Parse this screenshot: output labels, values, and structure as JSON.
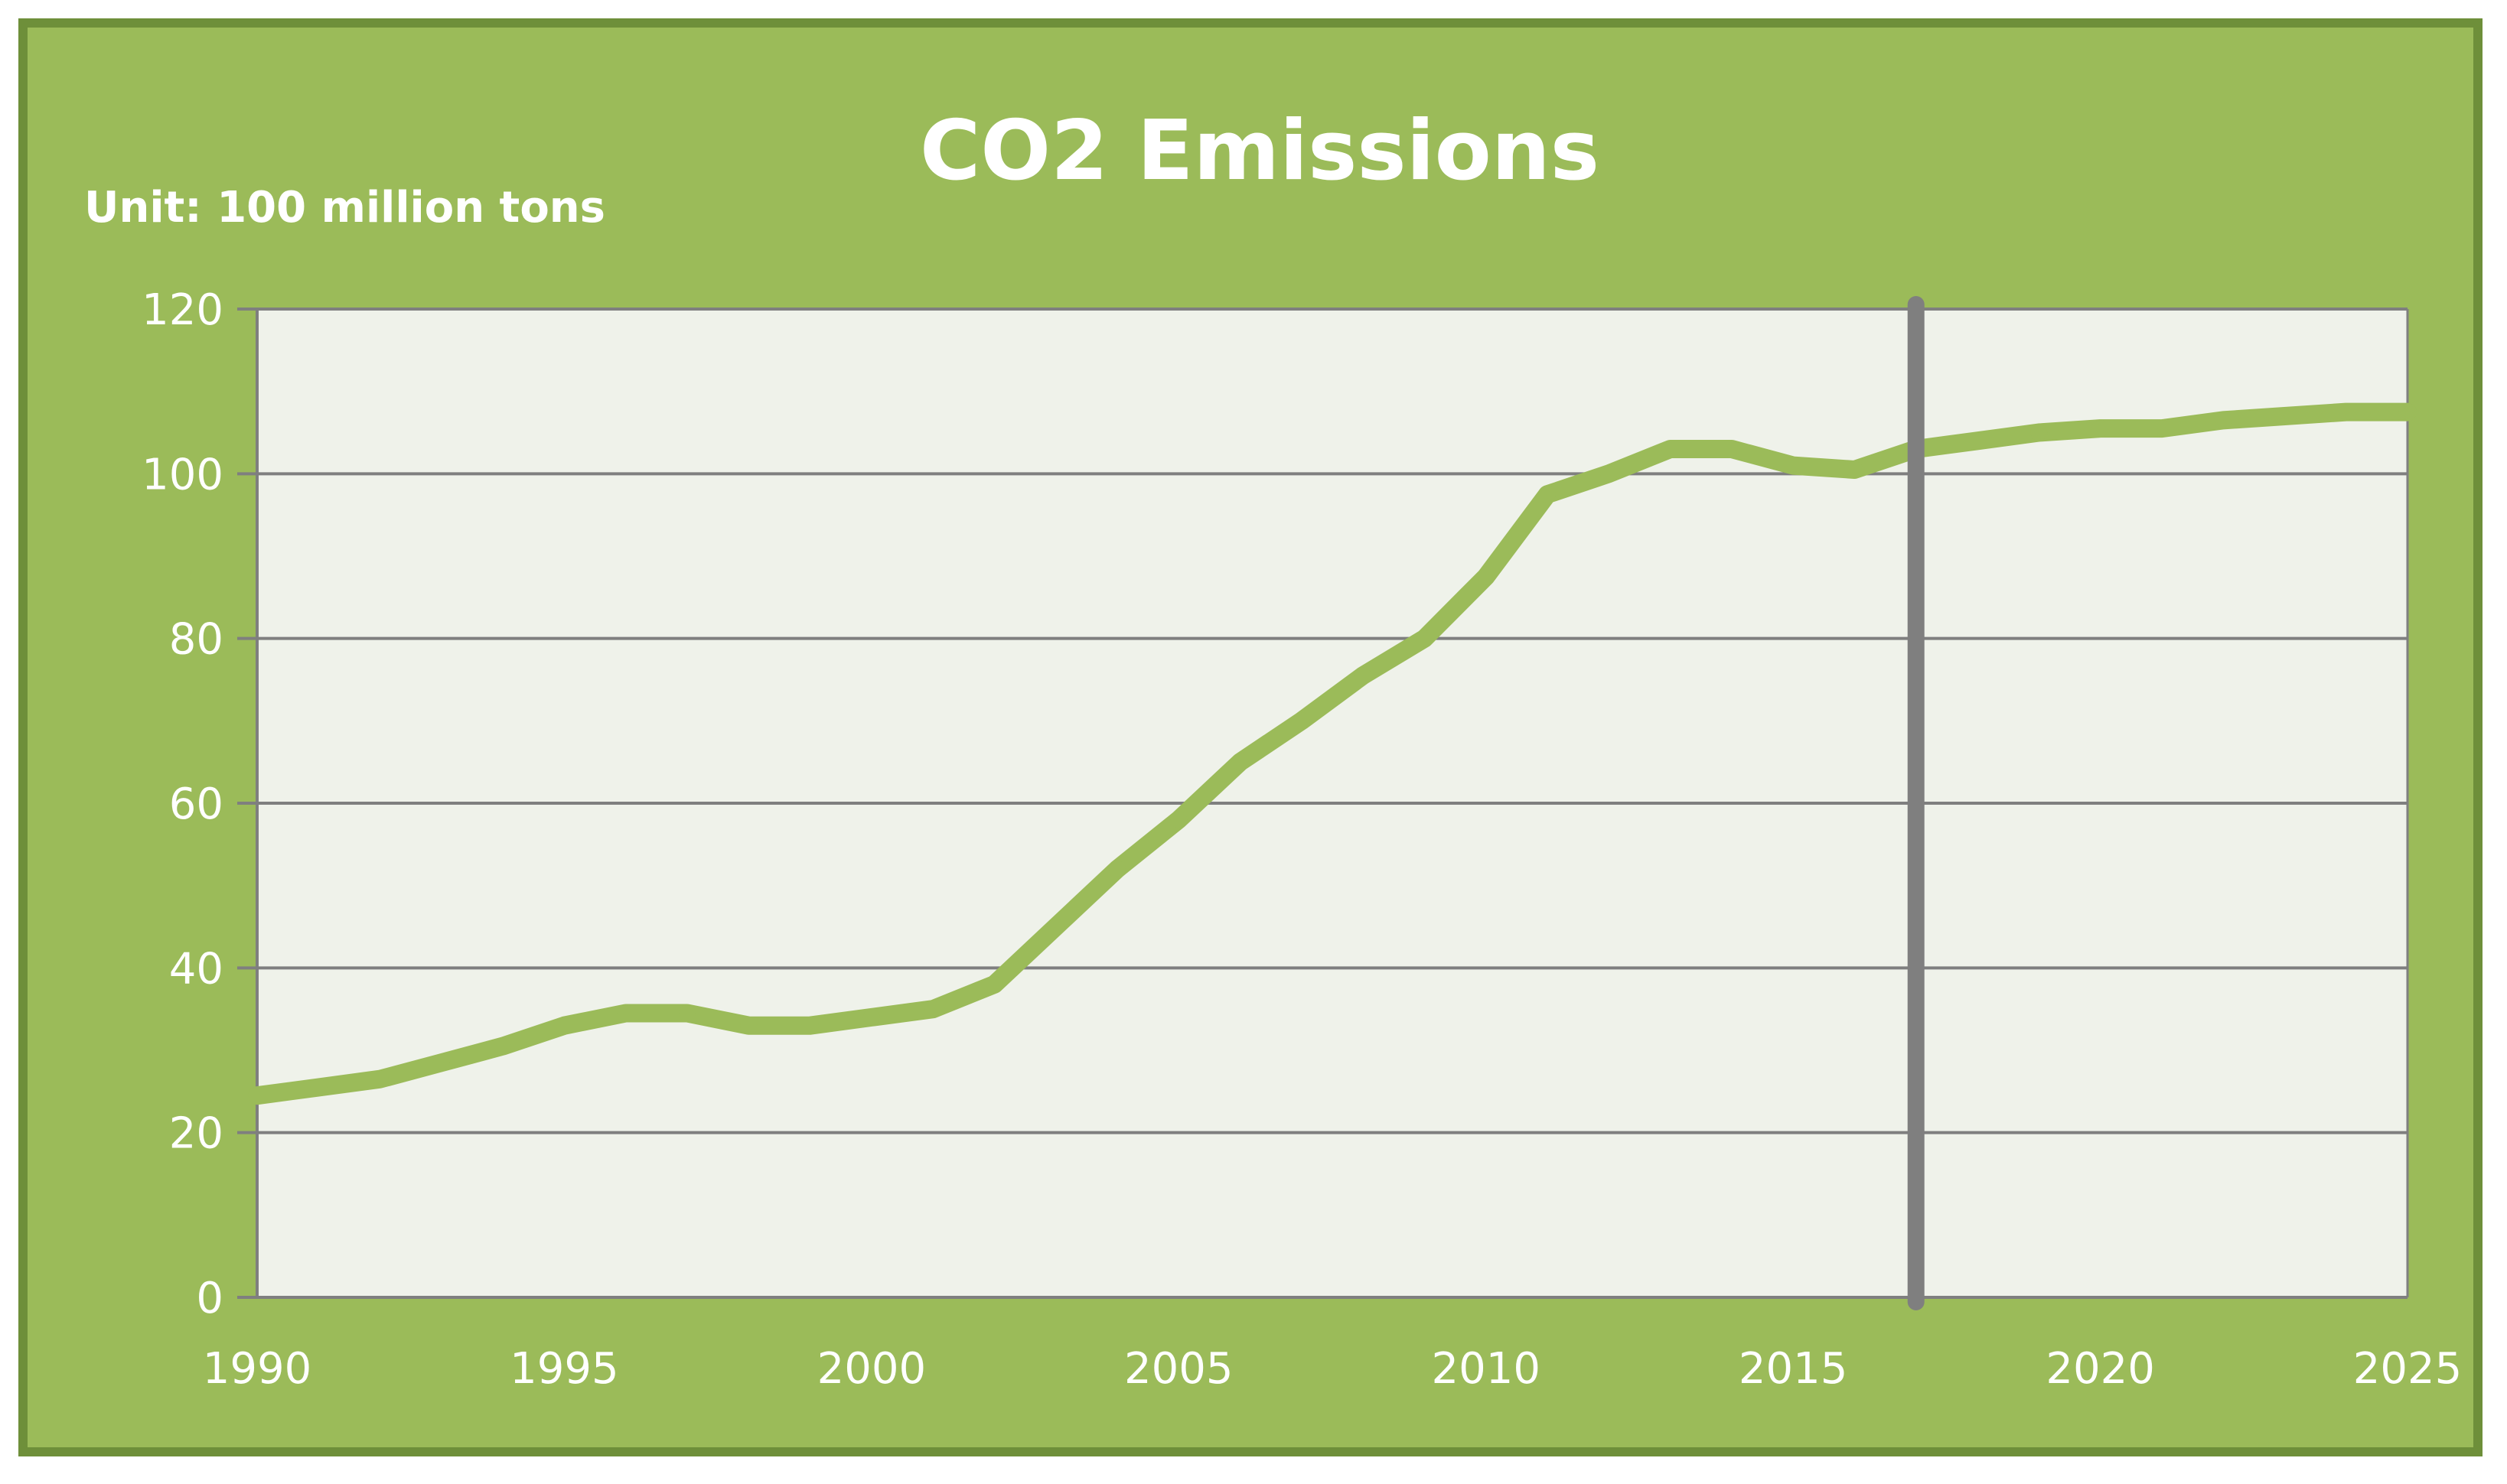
{
  "chart_data": {
    "type": "line",
    "title": "CO2 Emissions",
    "unit_label": "Unit: 100 million tons",
    "xlabel": "",
    "ylabel": "",
    "xlim": [
      1990,
      2025
    ],
    "ylim": [
      0,
      120
    ],
    "x_ticks": [
      1990,
      1995,
      2000,
      2005,
      2010,
      2015,
      2020,
      2025
    ],
    "y_ticks": [
      0,
      20,
      40,
      60,
      80,
      100,
      120
    ],
    "grid": true,
    "divider_year": 2017,
    "series": [
      {
        "name": "CO2 Emissions",
        "color": "#9bbb59",
        "x": [
          1990,
          1991,
          1992,
          1993,
          1994,
          1995,
          1996,
          1997,
          1998,
          1999,
          2000,
          2001,
          2002,
          2003,
          2004,
          2005,
          2006,
          2007,
          2008,
          2009,
          2010,
          2011,
          2012,
          2013,
          2014,
          2015,
          2016,
          2017,
          2018,
          2019,
          2020,
          2021,
          2022,
          2023,
          2024,
          2025
        ],
        "values": [
          24.5,
          25.5,
          26.5,
          28.5,
          30.5,
          33,
          34.5,
          34.5,
          33,
          33,
          34,
          35,
          38,
          45,
          52,
          58,
          65,
          70,
          75.5,
          80,
          87.5,
          97.5,
          100,
          103,
          103,
          101,
          100.5,
          103,
          104,
          105,
          105.5,
          105.5,
          106.5,
          107,
          107.5,
          107.5
        ]
      }
    ],
    "colors": {
      "frame_bg": "#9bbb59",
      "frame_border": "#6e8f3a",
      "plot_bg": "#eff2ea",
      "grid": "#7f7f7f",
      "divider": "#7f7f7f",
      "text": "#ffffff"
    }
  }
}
